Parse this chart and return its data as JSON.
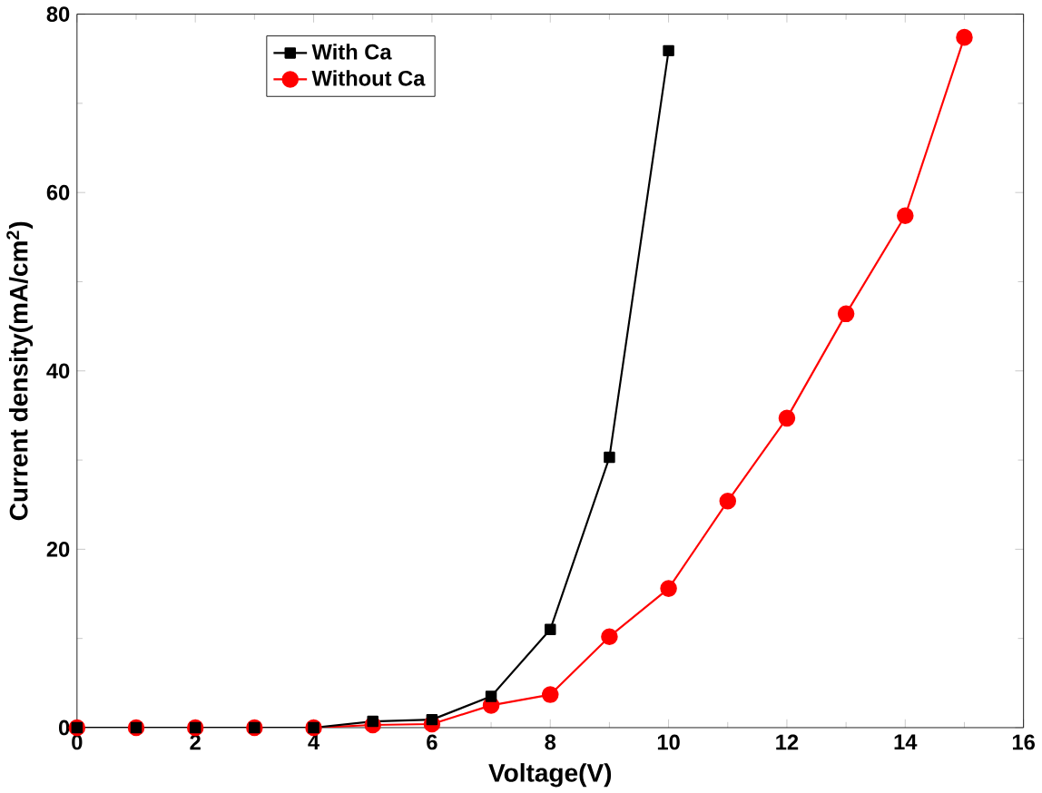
{
  "chart_data": {
    "type": "line",
    "xlabel": "Voltage(V)",
    "ylabel": "Current density(mA/cm$^{2}$)",
    "xlim": [
      0,
      16
    ],
    "ylim": [
      0,
      80
    ],
    "xticks": [
      0,
      2,
      4,
      6,
      8,
      10,
      12,
      14,
      16
    ],
    "yticks": [
      0,
      20,
      40,
      60,
      80
    ],
    "grid": false,
    "legend": "top left",
    "series": [
      {
        "name": "With Ca",
        "color": "#000000",
        "marker": "square",
        "x": [
          0,
          1,
          2,
          3,
          4,
          5,
          6,
          7,
          8,
          9,
          10
        ],
        "values": [
          0,
          0,
          0,
          0,
          0,
          0.7,
          0.9,
          3.5,
          11,
          30.3,
          75.9
        ]
      },
      {
        "name": "Without Ca",
        "color": "#ff0000",
        "marker": "circle",
        "x": [
          0,
          1,
          2,
          3,
          4,
          5,
          6,
          7,
          8,
          9,
          10,
          11,
          12,
          13,
          14,
          15
        ],
        "values": [
          0,
          0,
          0,
          0,
          0,
          0.3,
          0.4,
          2.5,
          3.7,
          10.2,
          15.6,
          25.4,
          34.7,
          46.4,
          57.4,
          77.4
        ]
      }
    ]
  }
}
